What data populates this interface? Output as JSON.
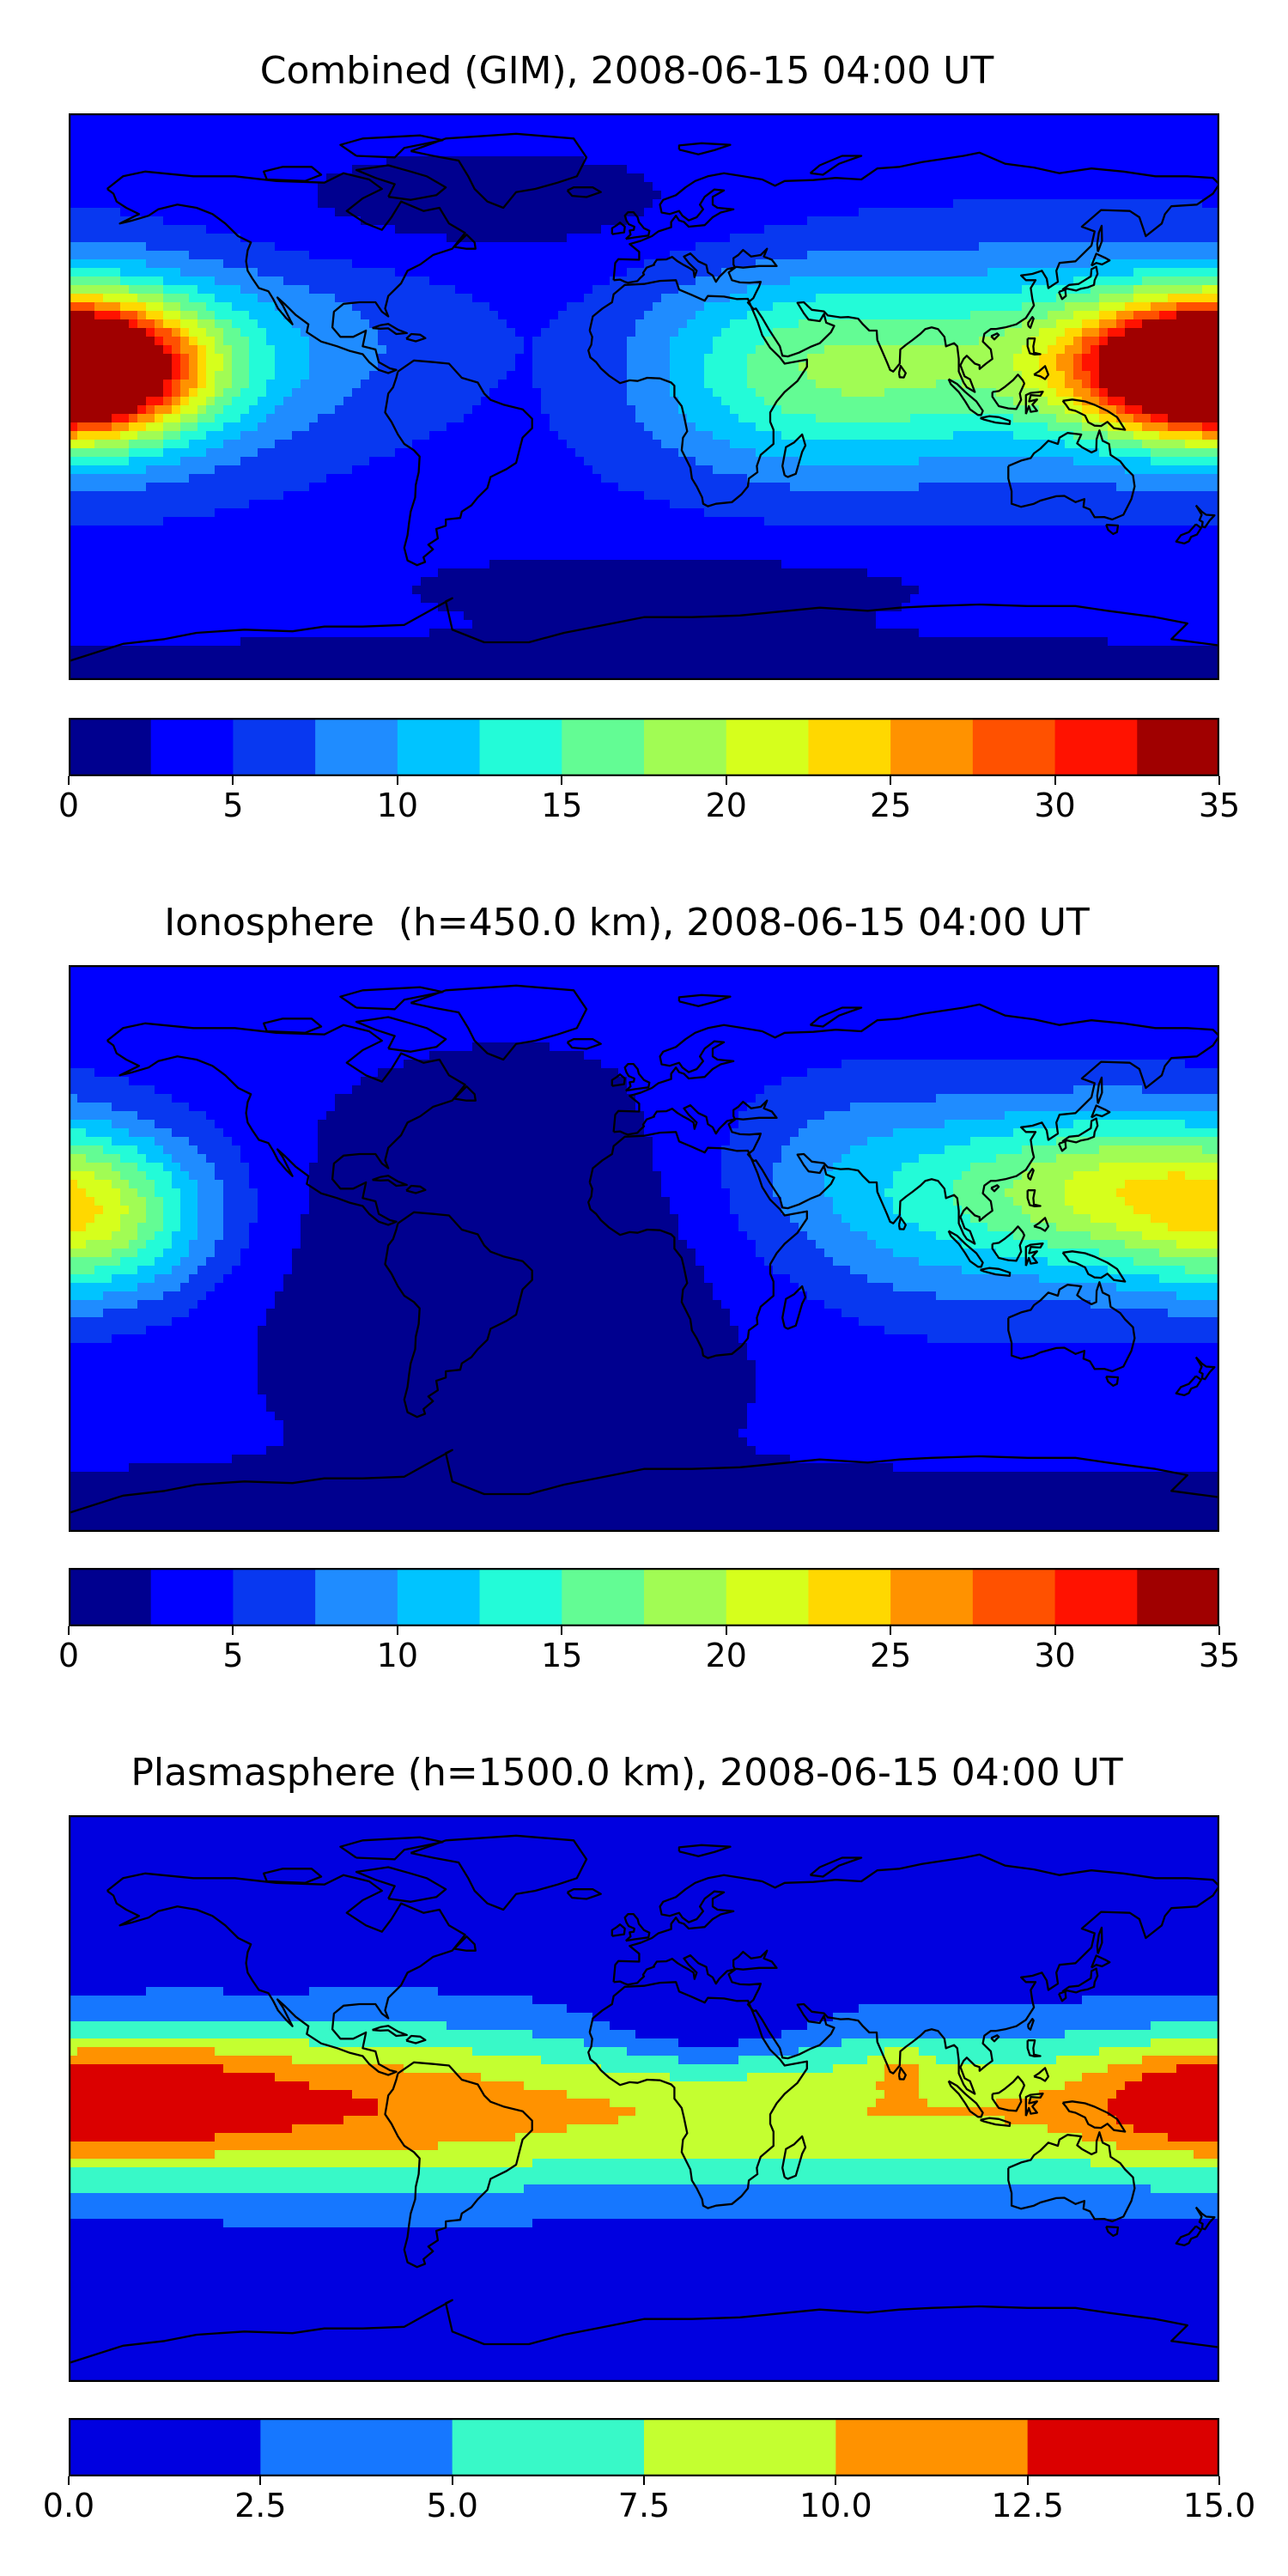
{
  "panels": [
    {
      "id": "combined",
      "title": "Combined (GIM), 2008-06-15 04:00 UT",
      "colorbar": {
        "colors": [
          "#00008f",
          "#0000ff",
          "#0838f0",
          "#1f8cff",
          "#00c4ff",
          "#23fbd8",
          "#63fc94",
          "#a1fc54",
          "#d6ff1c",
          "#ffd800",
          "#ff9200",
          "#ff5100",
          "#ff1200",
          "#a00000"
        ],
        "boundaries": [
          0,
          2.5,
          5,
          7.5,
          10,
          12.5,
          15,
          17.5,
          20,
          22.5,
          25,
          27.5,
          30,
          32.5,
          35
        ],
        "ticks": [
          0,
          5,
          10,
          15,
          20,
          25,
          30,
          35
        ],
        "tick_labels": [
          "0",
          "5",
          "10",
          "15",
          "20",
          "25",
          "30",
          "35"
        ]
      }
    },
    {
      "id": "ionosphere",
      "title": "Ionosphere  (h=450.0 km), 2008-06-15 04:00 UT",
      "colorbar": {
        "colors": [
          "#00008f",
          "#0000ff",
          "#0838f0",
          "#1f8cff",
          "#00c4ff",
          "#23fbd8",
          "#63fc94",
          "#a1fc54",
          "#d6ff1c",
          "#ffd800",
          "#ff9200",
          "#ff5100",
          "#ff1200",
          "#a00000"
        ],
        "boundaries": [
          0,
          2.5,
          5,
          7.5,
          10,
          12.5,
          15,
          17.5,
          20,
          22.5,
          25,
          27.5,
          30,
          32.5,
          35
        ],
        "ticks": [
          0,
          5,
          10,
          15,
          20,
          25,
          30,
          35
        ],
        "tick_labels": [
          "0",
          "5",
          "10",
          "15",
          "20",
          "25",
          "30",
          "35"
        ]
      }
    },
    {
      "id": "plasmasphere",
      "title": "Plasmasphere (h=1500.0 km), 2008-06-15 04:00 UT",
      "colorbar": {
        "colors": [
          "#0000e0",
          "#1677ff",
          "#38f9c8",
          "#c4ff30",
          "#ff9200",
          "#db0000"
        ],
        "boundaries": [
          0,
          2.5,
          5,
          7.5,
          10,
          12.5,
          15
        ],
        "ticks": [
          0,
          2.5,
          5,
          7.5,
          10,
          12.5,
          15
        ],
        "tick_labels": [
          "0.0",
          "2.5",
          "5.0",
          "7.5",
          "10.0",
          "12.5",
          "15.0"
        ]
      }
    }
  ]
}
